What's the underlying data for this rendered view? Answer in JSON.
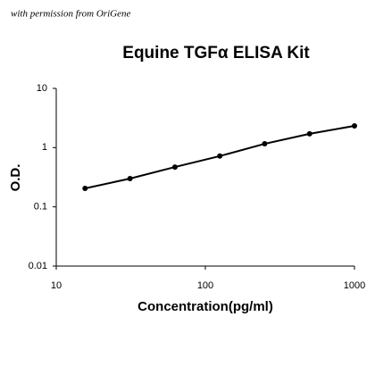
{
  "chart_data": {
    "type": "line",
    "annotation": "with permission from OriGene",
    "title": "Equine TGFα ELISA Kit",
    "x_label": "Concentration(pg/ml)",
    "y_label": "O.D.",
    "x": [
      15.6,
      31.25,
      62.5,
      125,
      250,
      500,
      1000
    ],
    "values": [
      0.205,
      0.3,
      0.47,
      0.72,
      1.16,
      1.71,
      2.33
    ],
    "color": "#000000",
    "markers": true,
    "xscale": "log",
    "yscale": "log",
    "xlim": [
      10,
      1000
    ],
    "ylim": [
      0.01,
      10
    ],
    "xticks": [
      10,
      100,
      1000
    ],
    "yticks": [
      0.01,
      0.1,
      1,
      10
    ]
  }
}
